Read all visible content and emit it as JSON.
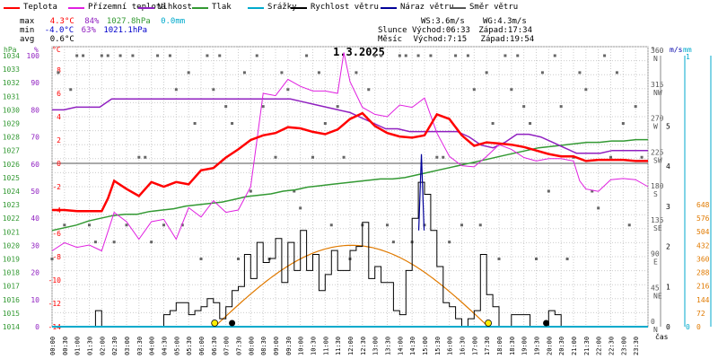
{
  "chart_data": {
    "type": "line",
    "title": "1.3.2025",
    "legend": [
      {
        "name": "Teplota",
        "color": "#ff0000"
      },
      {
        "name": "Přízemní teplota",
        "color": "#e020e0"
      },
      {
        "name": "Vlhkost",
        "color": "#9020c0"
      },
      {
        "name": "Tlak",
        "color": "#339933"
      },
      {
        "name": "Srážky",
        "color": "#00aacc"
      },
      {
        "name": "Rychlost větru",
        "color": "#000000"
      },
      {
        "name": "Náraz větru",
        "color": "#000099"
      },
      {
        "name": "Směr větru",
        "color": "#555555"
      }
    ],
    "stats": {
      "max": {
        "label": "max",
        "temp": "4.3°C",
        "hum": "84%",
        "press": "1027.8hPa",
        "rain": "0.0mm"
      },
      "min": {
        "label": "min",
        "temp": "-4.0°C",
        "hum": "63%",
        "press": "1021.1hPa"
      },
      "avg": {
        "label": "avg",
        "temp": "0.6°C"
      },
      "ws": "WS:3.6m/s",
      "wg": "WG:4.3m/s",
      "sun": {
        "label": "Slunce",
        "rise": "Východ:06:33",
        "set": "Západ:17:34"
      },
      "moon": {
        "label": "Měsíc",
        "rise": "Východ:7:15",
        "set": "Západ:19:54"
      }
    },
    "axes": {
      "hpa": {
        "label": "hPa",
        "ticks": [
          1014,
          1015,
          1016,
          1017,
          1018,
          1019,
          1020,
          1021,
          1022,
          1023,
          1024,
          1025,
          1026,
          1027,
          1028,
          1029,
          1030,
          1031,
          1032,
          1033,
          1034
        ]
      },
      "pct": {
        "label": "%",
        "ticks": [
          0,
          10,
          20,
          30,
          40,
          50,
          60,
          70,
          80,
          90,
          100
        ]
      },
      "temp": {
        "label": "°C",
        "ticks": [
          -14,
          -12,
          -10,
          -8,
          -6,
          -4,
          -2,
          0,
          2,
          4,
          6,
          8
        ]
      },
      "dir": {
        "label": "°",
        "ticks": [
          {
            "deg": "0",
            "dir": "N"
          },
          {
            "deg": "45",
            "dir": "NE"
          },
          {
            "deg": "90",
            "dir": "E"
          },
          {
            "deg": "135",
            "dir": "SE"
          },
          {
            "deg": "180",
            "dir": "S"
          },
          {
            "deg": "225",
            "dir": "SW"
          },
          {
            "deg": "270",
            "dir": "W"
          },
          {
            "deg": "315",
            "dir": "NW"
          },
          {
            "deg": "360",
            "dir": "N"
          }
        ]
      },
      "ms": {
        "label": "m/s",
        "ticks": [
          0,
          1,
          2,
          3,
          4,
          5
        ]
      },
      "mm": {
        "label": "mm",
        "ticks": [
          0,
          1
        ]
      },
      "wm2": {
        "ticks": [
          0,
          72,
          144,
          216,
          288,
          360,
          432,
          504,
          576,
          648
        ]
      },
      "time": {
        "label": "čas",
        "ticks": [
          "00:00",
          "00:30",
          "01:00",
          "01:30",
          "02:00",
          "02:30",
          "03:00",
          "03:30",
          "04:00",
          "04:30",
          "05:00",
          "05:30",
          "06:00",
          "06:30",
          "07:00",
          "07:30",
          "08:00",
          "08:30",
          "09:00",
          "09:30",
          "10:00",
          "10:30",
          "11:00",
          "11:30",
          "12:00",
          "12:30",
          "13:00",
          "13:30",
          "14:00",
          "14:30",
          "15:00",
          "15:30",
          "16:00",
          "16:30",
          "17:00",
          "17:30",
          "18:00",
          "18:30",
          "19:00",
          "19:30",
          "20:00",
          "20:30",
          "21:00",
          "21:30",
          "22:00",
          "22:30",
          "23:00",
          "23:30"
        ]
      }
    },
    "series": {
      "temperature_x": [
        0,
        0.5,
        1,
        1.5,
        2,
        2.25,
        2.5,
        3,
        3.5,
        4,
        4.5,
        5,
        5.5,
        6,
        6.5,
        7,
        7.5,
        8,
        8.5,
        9,
        9.5,
        10,
        10.5,
        11,
        11.5,
        12,
        12.5,
        13,
        13.5,
        14,
        14.5,
        15,
        15.5,
        16,
        16.5,
        17,
        17.5,
        18,
        18.5,
        19,
        19.5,
        20,
        20.5,
        21,
        21.5,
        22,
        22.5,
        23,
        23.5,
        24
      ],
      "temperature": [
        -4.0,
        -4.0,
        -4.1,
        -4.1,
        -4.1,
        -3.0,
        -1.5,
        -2.2,
        -2.8,
        -1.6,
        -2.0,
        -1.6,
        -1.8,
        -0.6,
        -0.4,
        0.5,
        1.2,
        2.0,
        2.4,
        2.6,
        3.1,
        3.0,
        2.7,
        2.5,
        2.9,
        3.8,
        4.3,
        3.2,
        2.6,
        2.3,
        2.2,
        2.4,
        4.2,
        3.8,
        2.4,
        1.5,
        1.8,
        1.7,
        1.6,
        1.4,
        1.1,
        0.8,
        0.6,
        0.6,
        0.2,
        0.3,
        0.3,
        0.3,
        0.2,
        0.2
      ],
      "ground_temp_x": [
        0,
        0.5,
        1,
        1.5,
        2,
        2.5,
        3,
        3.5,
        4,
        4.5,
        5,
        5.5,
        6,
        6.5,
        7,
        7.5,
        8,
        8.25,
        8.5,
        9,
        9.5,
        10,
        10.5,
        11,
        11.5,
        11.75,
        12,
        12.5,
        13,
        13.5,
        14,
        14.5,
        15,
        15.5,
        16,
        16.5,
        17,
        17.5,
        18,
        18.5,
        19,
        19.5,
        20,
        20.5,
        21,
        21.25,
        21.5,
        22,
        22.5,
        23,
        23.5,
        24
      ],
      "ground_temp": [
        -7.5,
        -6.8,
        -7.2,
        -7.0,
        -7.5,
        -4.2,
        -5.0,
        -6.5,
        -5.0,
        -4.8,
        -6.5,
        -3.8,
        -4.6,
        -3.2,
        -4.2,
        -4.0,
        -2.0,
        2.0,
        6.0,
        5.8,
        7.2,
        6.6,
        6.2,
        6.2,
        6.0,
        9.5,
        7.0,
        4.8,
        4.2,
        4.0,
        5.0,
        4.8,
        5.6,
        2.6,
        0.6,
        -0.2,
        -0.3,
        0.6,
        1.6,
        1.2,
        0.5,
        0.2,
        0.4,
        0.4,
        0.2,
        -1.5,
        -2.2,
        -2.4,
        -1.4,
        -1.3,
        -1.4,
        -2.0
      ],
      "humidity": [
        80,
        80,
        81,
        81,
        81,
        84,
        84,
        84,
        84,
        84,
        84,
        84,
        84,
        84,
        84,
        84,
        84,
        84,
        84,
        84,
        84,
        83,
        82,
        81,
        80,
        79,
        77,
        75,
        73,
        73,
        72,
        72,
        72,
        72,
        72,
        70,
        67,
        66,
        68,
        71,
        71,
        70,
        68,
        66,
        64,
        64,
        64,
        65,
        65,
        65,
        65
      ],
      "pressure": [
        1021.1,
        1021.3,
        1021.5,
        1021.8,
        1022.0,
        1022.2,
        1022.3,
        1022.3,
        1022.5,
        1022.6,
        1022.7,
        1022.9,
        1023.0,
        1023.1,
        1023.2,
        1023.4,
        1023.6,
        1023.7,
        1023.8,
        1024.0,
        1024.1,
        1024.3,
        1024.4,
        1024.5,
        1024.6,
        1024.7,
        1024.8,
        1024.9,
        1024.9,
        1025.0,
        1025.2,
        1025.4,
        1025.6,
        1025.8,
        1026.0,
        1026.2,
        1026.4,
        1026.6,
        1026.8,
        1027.0,
        1027.2,
        1027.3,
        1027.4,
        1027.5,
        1027.6,
        1027.6,
        1027.7,
        1027.7,
        1027.8,
        1027.8
      ],
      "wind_speed": [
        0,
        0,
        0,
        0,
        0,
        0,
        0,
        0.4,
        0,
        0,
        0,
        0,
        0,
        0,
        0,
        0,
        0,
        0,
        0.3,
        0.4,
        0.6,
        0.6,
        0.3,
        0.4,
        0.5,
        0.7,
        0.6,
        0.2,
        0.5,
        0.9,
        1.0,
        1.8,
        1.2,
        2.1,
        1.6,
        1.7,
        2.2,
        1.1,
        2.1,
        1.4,
        2.4,
        1.4,
        1.8,
        0.9,
        1.3,
        1.9,
        1.4,
        1.4,
        1.9,
        2.0,
        2.6,
        1.2,
        1.5,
        1.1,
        1.1,
        0.4,
        0.3,
        1.4,
        2.7,
        3.6,
        3.3,
        2.4,
        1.5,
        0.6,
        0.5,
        0.2,
        0,
        0.2,
        0.4,
        1.8,
        0.8,
        0.5,
        0,
        0,
        0.3,
        0.3,
        0.3,
        0,
        0,
        0,
        0.4,
        0.3,
        0,
        0,
        0,
        0,
        0,
        0,
        0,
        0,
        0,
        0,
        0,
        0,
        0,
        0
      ],
      "wind_gust_peak": 4.3,
      "solar_w_m2": 432,
      "rain": 0.0
    }
  }
}
